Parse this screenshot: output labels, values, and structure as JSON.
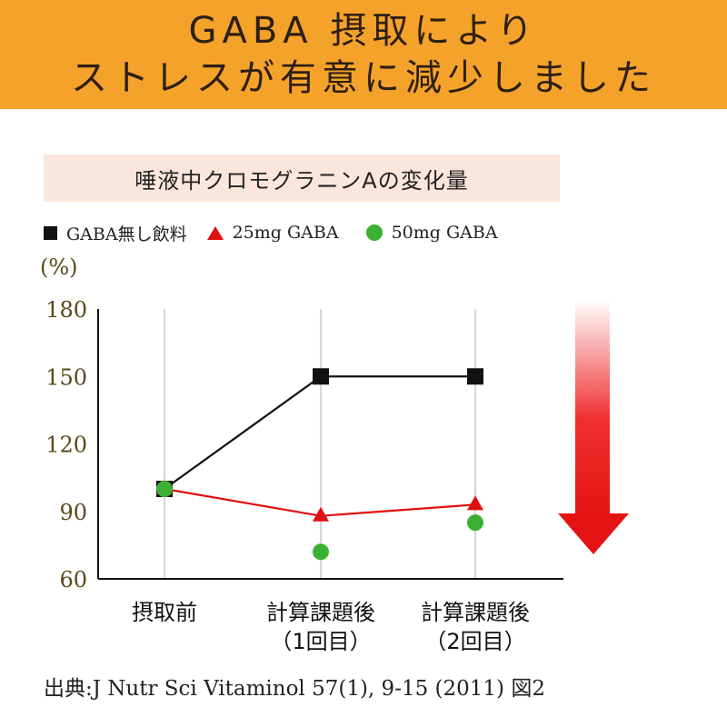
{
  "banner": {
    "line1": "GABA 摂取により",
    "line2": "ストレスが有意に減少しました"
  },
  "colors": {
    "banner": "#f5a22b",
    "subtitle_bg": "#fbe6dd",
    "no_gaba": "#111111",
    "gaba_25": "#e01010",
    "gaba_50": "#3cb034",
    "arrow": "#e81818"
  },
  "chart_data": {
    "type": "line",
    "title": "唾液中クロモグラニンAの変化量",
    "ylabel": "(%)",
    "xlabel": "",
    "ylim": [
      60,
      180
    ],
    "yticks": [
      "180",
      "150",
      "120",
      "90",
      "60"
    ],
    "categories": [
      {
        "line1": "摂取前",
        "line2": ""
      },
      {
        "line1": "計算課題後",
        "line2": "（1回目）"
      },
      {
        "line1": "計算課題後",
        "line2": "（2回目）"
      }
    ],
    "series": [
      {
        "name": "GABA無し飲料",
        "marker": "square",
        "line": true,
        "values": [
          100,
          150,
          150
        ]
      },
      {
        "name": "25mg GABA",
        "marker": "triangle",
        "line": true,
        "values": [
          100,
          88,
          93
        ]
      },
      {
        "name": "50mg GABA",
        "marker": "circle",
        "line": false,
        "values": [
          100,
          72,
          85
        ]
      }
    ],
    "grid": "vertical",
    "legend_position": "top"
  },
  "source": "出典:J Nutr Sci Vitaminol 57(1), 9-15 (2011) 図2"
}
